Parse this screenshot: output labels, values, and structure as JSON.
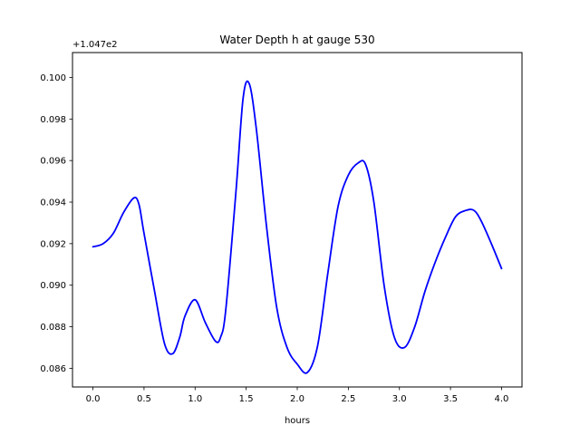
{
  "chart_data": {
    "type": "line",
    "title": "Water Depth h at gauge 530",
    "xlabel": "hours",
    "ylabel": "",
    "offset_label": "+1.047e2",
    "xlim": [
      -0.2,
      4.2
    ],
    "ylim": [
      0.0851,
      0.1012
    ],
    "xticks": [
      0.0,
      0.5,
      1.0,
      1.5,
      2.0,
      2.5,
      3.0,
      3.5,
      4.0
    ],
    "xtick_labels": [
      "0.0",
      "0.5",
      "1.0",
      "1.5",
      "2.0",
      "2.5",
      "3.0",
      "3.5",
      "4.0"
    ],
    "yticks": [
      0.086,
      0.088,
      0.09,
      0.092,
      0.094,
      0.096,
      0.098,
      0.1
    ],
    "ytick_labels": [
      "0.086",
      "0.088",
      "0.090",
      "0.092",
      "0.094",
      "0.096",
      "0.098",
      "0.100"
    ],
    "grid": false,
    "color": "#0000ff",
    "series": [
      {
        "x": [
          0.0,
          0.1,
          0.2,
          0.3,
          0.4,
          0.45,
          0.5,
          0.6,
          0.7,
          0.78,
          0.85,
          0.9,
          1.0,
          1.1,
          1.2,
          1.25,
          1.3,
          1.4,
          1.47,
          1.53,
          1.6,
          1.7,
          1.8,
          1.9,
          2.0,
          2.1,
          2.2,
          2.3,
          2.4,
          2.5,
          2.6,
          2.67,
          2.75,
          2.85,
          2.95,
          3.05,
          3.15,
          3.25,
          3.35,
          3.45,
          3.55,
          3.65,
          3.73,
          3.8,
          3.9,
          4.0
        ],
        "y": [
          0.09185,
          0.092,
          0.0925,
          0.0935,
          0.0942,
          0.0939,
          0.0925,
          0.0898,
          0.0872,
          0.0867,
          0.0875,
          0.0885,
          0.0893,
          0.0882,
          0.0873,
          0.0875,
          0.0888,
          0.0945,
          0.099,
          0.0997,
          0.0975,
          0.0928,
          0.0889,
          0.087,
          0.0862,
          0.0858,
          0.0871,
          0.0906,
          0.0938,
          0.0953,
          0.0959,
          0.0958,
          0.094,
          0.09,
          0.0875,
          0.087,
          0.088,
          0.0897,
          0.0911,
          0.0923,
          0.0933,
          0.0936,
          0.0936,
          0.0931,
          0.092,
          0.0908
        ]
      }
    ]
  }
}
